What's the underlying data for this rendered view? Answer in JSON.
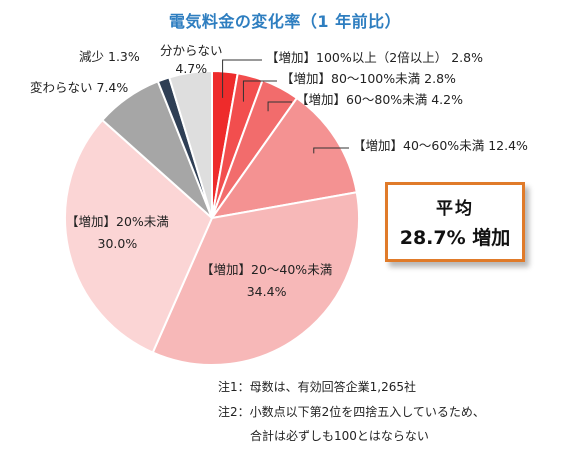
{
  "chart_data": {
    "type": "pie",
    "title": "電気料金の変化率（1 年前比）",
    "slices": [
      {
        "label": "【増加】100%以上（2倍以上）",
        "value": 2.8,
        "value_text": "2.8%",
        "color": "#ee2b2b"
      },
      {
        "label": "【増加】80～100%未満",
        "value": 2.8,
        "value_text": "2.8%",
        "color": "#f24e4e"
      },
      {
        "label": "【増加】60～80%未満",
        "value": 4.2,
        "value_text": "4.2%",
        "color": "#f26c6c"
      },
      {
        "label": "【増加】40～60%未満",
        "value": 12.4,
        "value_text": "12.4%",
        "color": "#f49292"
      },
      {
        "label": "【増加】20～40%未満",
        "value": 34.4,
        "value_text": "34.4%",
        "color": "#f7b8b8"
      },
      {
        "label": "【増加】20%未満",
        "value": 30.0,
        "value_text": "30.0%",
        "color": "#fbd5d5"
      },
      {
        "label": "変わらない",
        "value": 7.4,
        "value_text": "7.4%",
        "color": "#a6a6a6"
      },
      {
        "label": "減少",
        "value": 1.3,
        "value_text": "1.3%",
        "color": "#2f3f55"
      },
      {
        "label": "分からない",
        "value": 4.7,
        "value_text": "4.7%",
        "color": "#dedede"
      }
    ]
  },
  "average": {
    "title": "平均",
    "value": "28.7% 増加"
  },
  "notes": [
    "注1：母数は、有効回答企業1,265社",
    "注2：小数点以下第2位を四捨五入しているため、",
    "合計は必ずしも100とはならない"
  ]
}
